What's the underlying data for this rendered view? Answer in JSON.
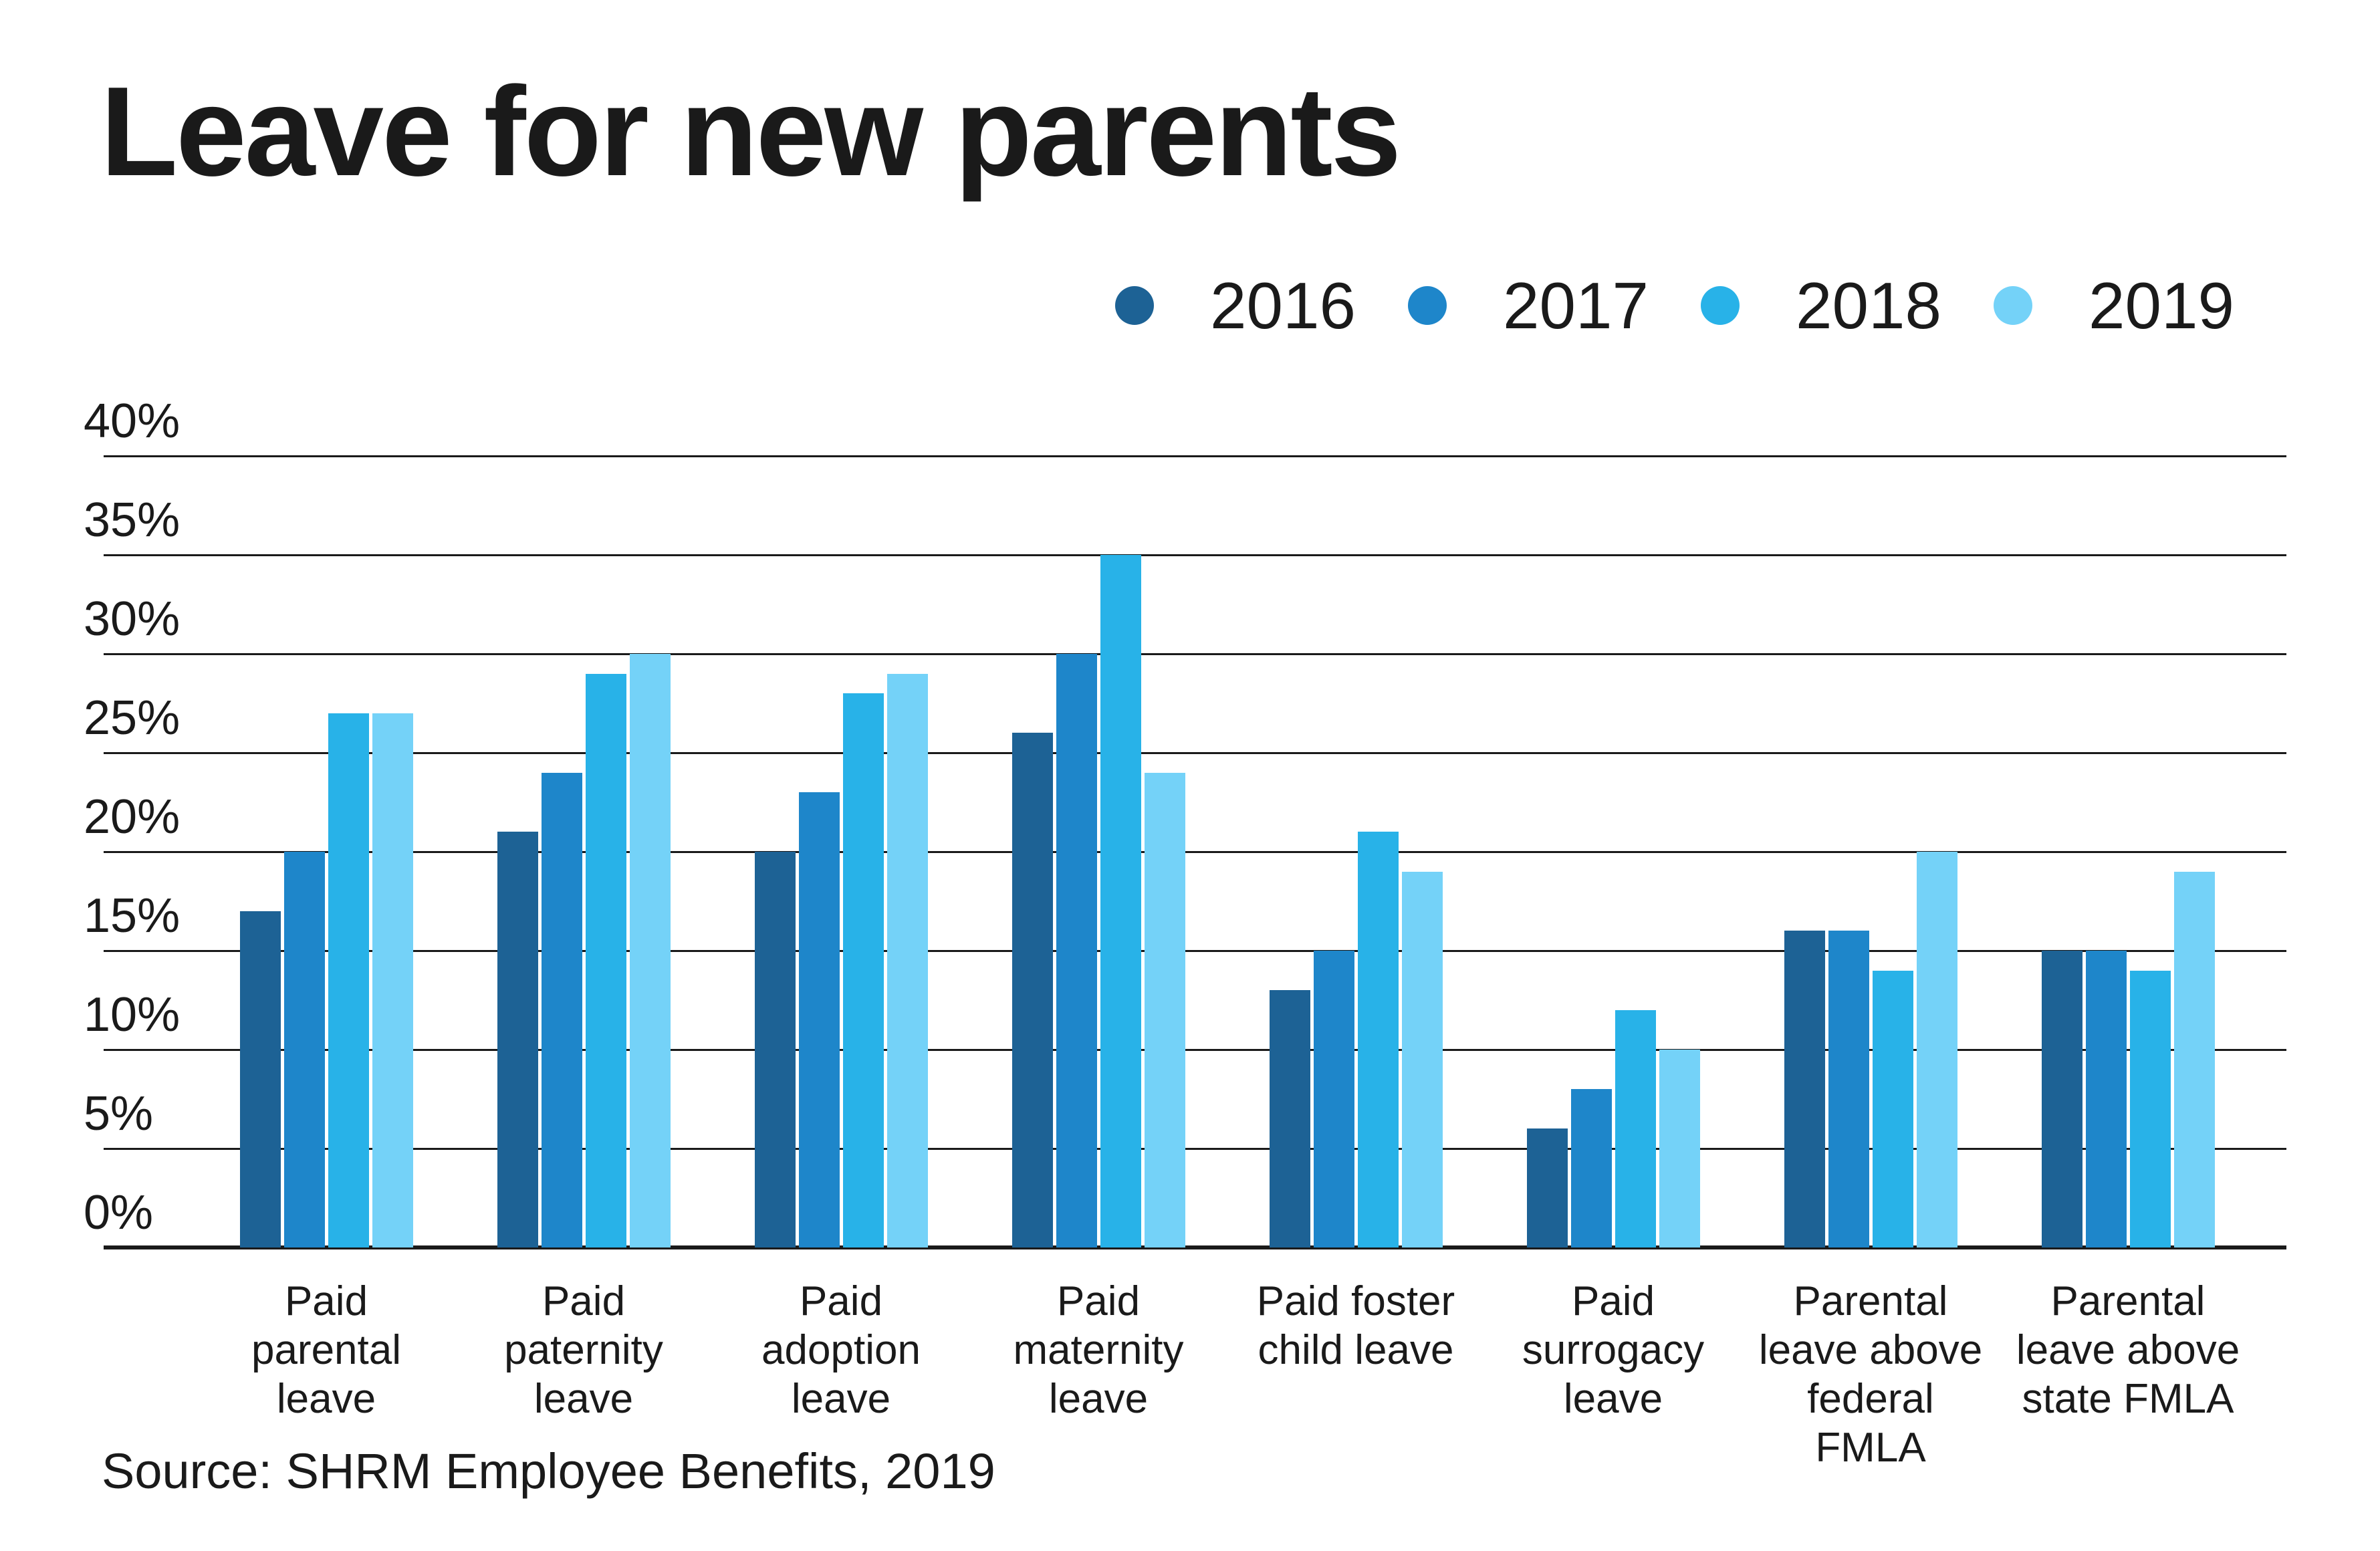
{
  "title": "Leave for new parents",
  "source": "Source: SHRM Employee Benefits, 2019",
  "chart_data": {
    "type": "bar",
    "title": "Leave for new parents",
    "categories": [
      "Paid\nparental\nleave",
      "Paid\npaternity\nleave",
      "Paid\nadoption\nleave",
      "Paid\nmaternity\nleave",
      "Paid foster\nchild leave",
      "Paid\nsurrogacy\nleave",
      "Parental\nleave above\nfederal\nFMLA",
      "Parental\nleave above\nstate FMLA"
    ],
    "series": [
      {
        "name": "2016",
        "color": "#1D6295",
        "values": [
          17,
          21,
          20,
          26,
          13,
          6,
          16,
          15
        ]
      },
      {
        "name": "2017",
        "color": "#1E86CA",
        "values": [
          20,
          24,
          23,
          30,
          15,
          8,
          16,
          15
        ]
      },
      {
        "name": "2018",
        "color": "#28B2E8",
        "values": [
          27,
          29,
          28,
          35,
          21,
          12,
          14,
          14
        ]
      },
      {
        "name": "2019",
        "color": "#74D2F8",
        "values": [
          27,
          30,
          29,
          24,
          19,
          10,
          20,
          19
        ]
      }
    ],
    "ylabel": "",
    "xlabel": "",
    "ylim": [
      0,
      40
    ],
    "ytick_step": 5,
    "ytick_labels": [
      "0%",
      "5%",
      "10%",
      "15%",
      "20%",
      "25%",
      "30%",
      "35%",
      "40%"
    ],
    "grid": true,
    "legend_position": "top-right",
    "source": "Source: SHRM Employee Benefits, 2019"
  },
  "colors": {
    "text": "#1a1a1a",
    "gridline": "#1a1a1a",
    "background": "#ffffff"
  }
}
